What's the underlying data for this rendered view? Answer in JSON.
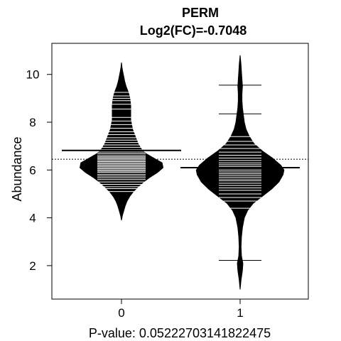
{
  "chart_data": {
    "type": "beanplot",
    "title": "PERM",
    "subtitle": "Log2(FC)=-0.7048",
    "xlabel": "P-value: 0.0522270314182247​5",
    "ylabel": "Abundance",
    "categories": [
      "0",
      "1"
    ],
    "yticks": [
      "2",
      "4",
      "6",
      "8",
      "10"
    ],
    "ylim": [
      0.6,
      11.3
    ],
    "overall_mean": 6.45,
    "colors": {
      "fill": "#000000",
      "stripe": "#ffffff",
      "background": "#ffffff"
    },
    "series": [
      {
        "category": "0",
        "mean": 6.82,
        "range": [
          3.9,
          10.5
        ],
        "density": [
          [
            3.9,
            0.0
          ],
          [
            4.1,
            0.02
          ],
          [
            4.3,
            0.05
          ],
          [
            4.5,
            0.08
          ],
          [
            4.7,
            0.12
          ],
          [
            4.9,
            0.18
          ],
          [
            5.1,
            0.26
          ],
          [
            5.3,
            0.36
          ],
          [
            5.5,
            0.48
          ],
          [
            5.7,
            0.62
          ],
          [
            5.9,
            0.78
          ],
          [
            6.1,
            0.9
          ],
          [
            6.3,
            0.88
          ],
          [
            6.5,
            0.7
          ],
          [
            6.7,
            0.52
          ],
          [
            6.9,
            0.42
          ],
          [
            7.1,
            0.36
          ],
          [
            7.3,
            0.32
          ],
          [
            7.5,
            0.28
          ],
          [
            7.7,
            0.24
          ],
          [
            7.9,
            0.22
          ],
          [
            8.1,
            0.2
          ],
          [
            8.3,
            0.2
          ],
          [
            8.5,
            0.2
          ],
          [
            8.7,
            0.2
          ],
          [
            8.9,
            0.19
          ],
          [
            9.1,
            0.17
          ],
          [
            9.3,
            0.14
          ],
          [
            9.5,
            0.1
          ],
          [
            9.7,
            0.07
          ],
          [
            9.9,
            0.05
          ],
          [
            10.1,
            0.03
          ],
          [
            10.3,
            0.01
          ],
          [
            10.5,
            0.0
          ]
        ],
        "observations": [
          5.1,
          5.22,
          5.3,
          5.4,
          5.5,
          5.6,
          5.68,
          5.75,
          5.82,
          5.9,
          5.95,
          6.0,
          6.05,
          6.1,
          6.15,
          6.2,
          6.25,
          6.3,
          6.35,
          6.4,
          6.45,
          6.5,
          6.55,
          6.6,
          6.68,
          6.75,
          6.85,
          6.95,
          7.05,
          7.15,
          7.25,
          7.35,
          7.48,
          7.6,
          7.75,
          7.9,
          8.05,
          8.2,
          8.55,
          8.75,
          8.9,
          9.0,
          9.1,
          9.25
        ]
      },
      {
        "category": "1",
        "mean": 6.1,
        "range": [
          1.0,
          10.8
        ],
        "density": [
          [
            1.0,
            0.0
          ],
          [
            1.4,
            0.02
          ],
          [
            1.8,
            0.05
          ],
          [
            2.1,
            0.06
          ],
          [
            2.4,
            0.03
          ],
          [
            2.8,
            0.02
          ],
          [
            3.2,
            0.03
          ],
          [
            3.6,
            0.05
          ],
          [
            4.0,
            0.09
          ],
          [
            4.3,
            0.16
          ],
          [
            4.6,
            0.28
          ],
          [
            4.9,
            0.48
          ],
          [
            5.2,
            0.68
          ],
          [
            5.5,
            0.84
          ],
          [
            5.8,
            0.93
          ],
          [
            6.0,
            0.95
          ],
          [
            6.2,
            0.88
          ],
          [
            6.5,
            0.7
          ],
          [
            6.8,
            0.48
          ],
          [
            7.1,
            0.3
          ],
          [
            7.4,
            0.2
          ],
          [
            7.7,
            0.13
          ],
          [
            8.0,
            0.09
          ],
          [
            8.3,
            0.07
          ],
          [
            8.6,
            0.05
          ],
          [
            8.9,
            0.04
          ],
          [
            9.2,
            0.04
          ],
          [
            9.5,
            0.05
          ],
          [
            9.8,
            0.04
          ],
          [
            10.1,
            0.03
          ],
          [
            10.4,
            0.02
          ],
          [
            10.8,
            0.0
          ]
        ],
        "observations": [
          2.22,
          4.4,
          4.7,
          4.85,
          5.0,
          5.15,
          5.25,
          5.35,
          5.45,
          5.55,
          5.62,
          5.7,
          5.78,
          5.85,
          5.92,
          6.0,
          6.08,
          6.15,
          6.22,
          6.3,
          6.4,
          6.5,
          6.62,
          6.75,
          6.9,
          7.05,
          7.2,
          7.4,
          8.35,
          9.55
        ]
      }
    ]
  }
}
